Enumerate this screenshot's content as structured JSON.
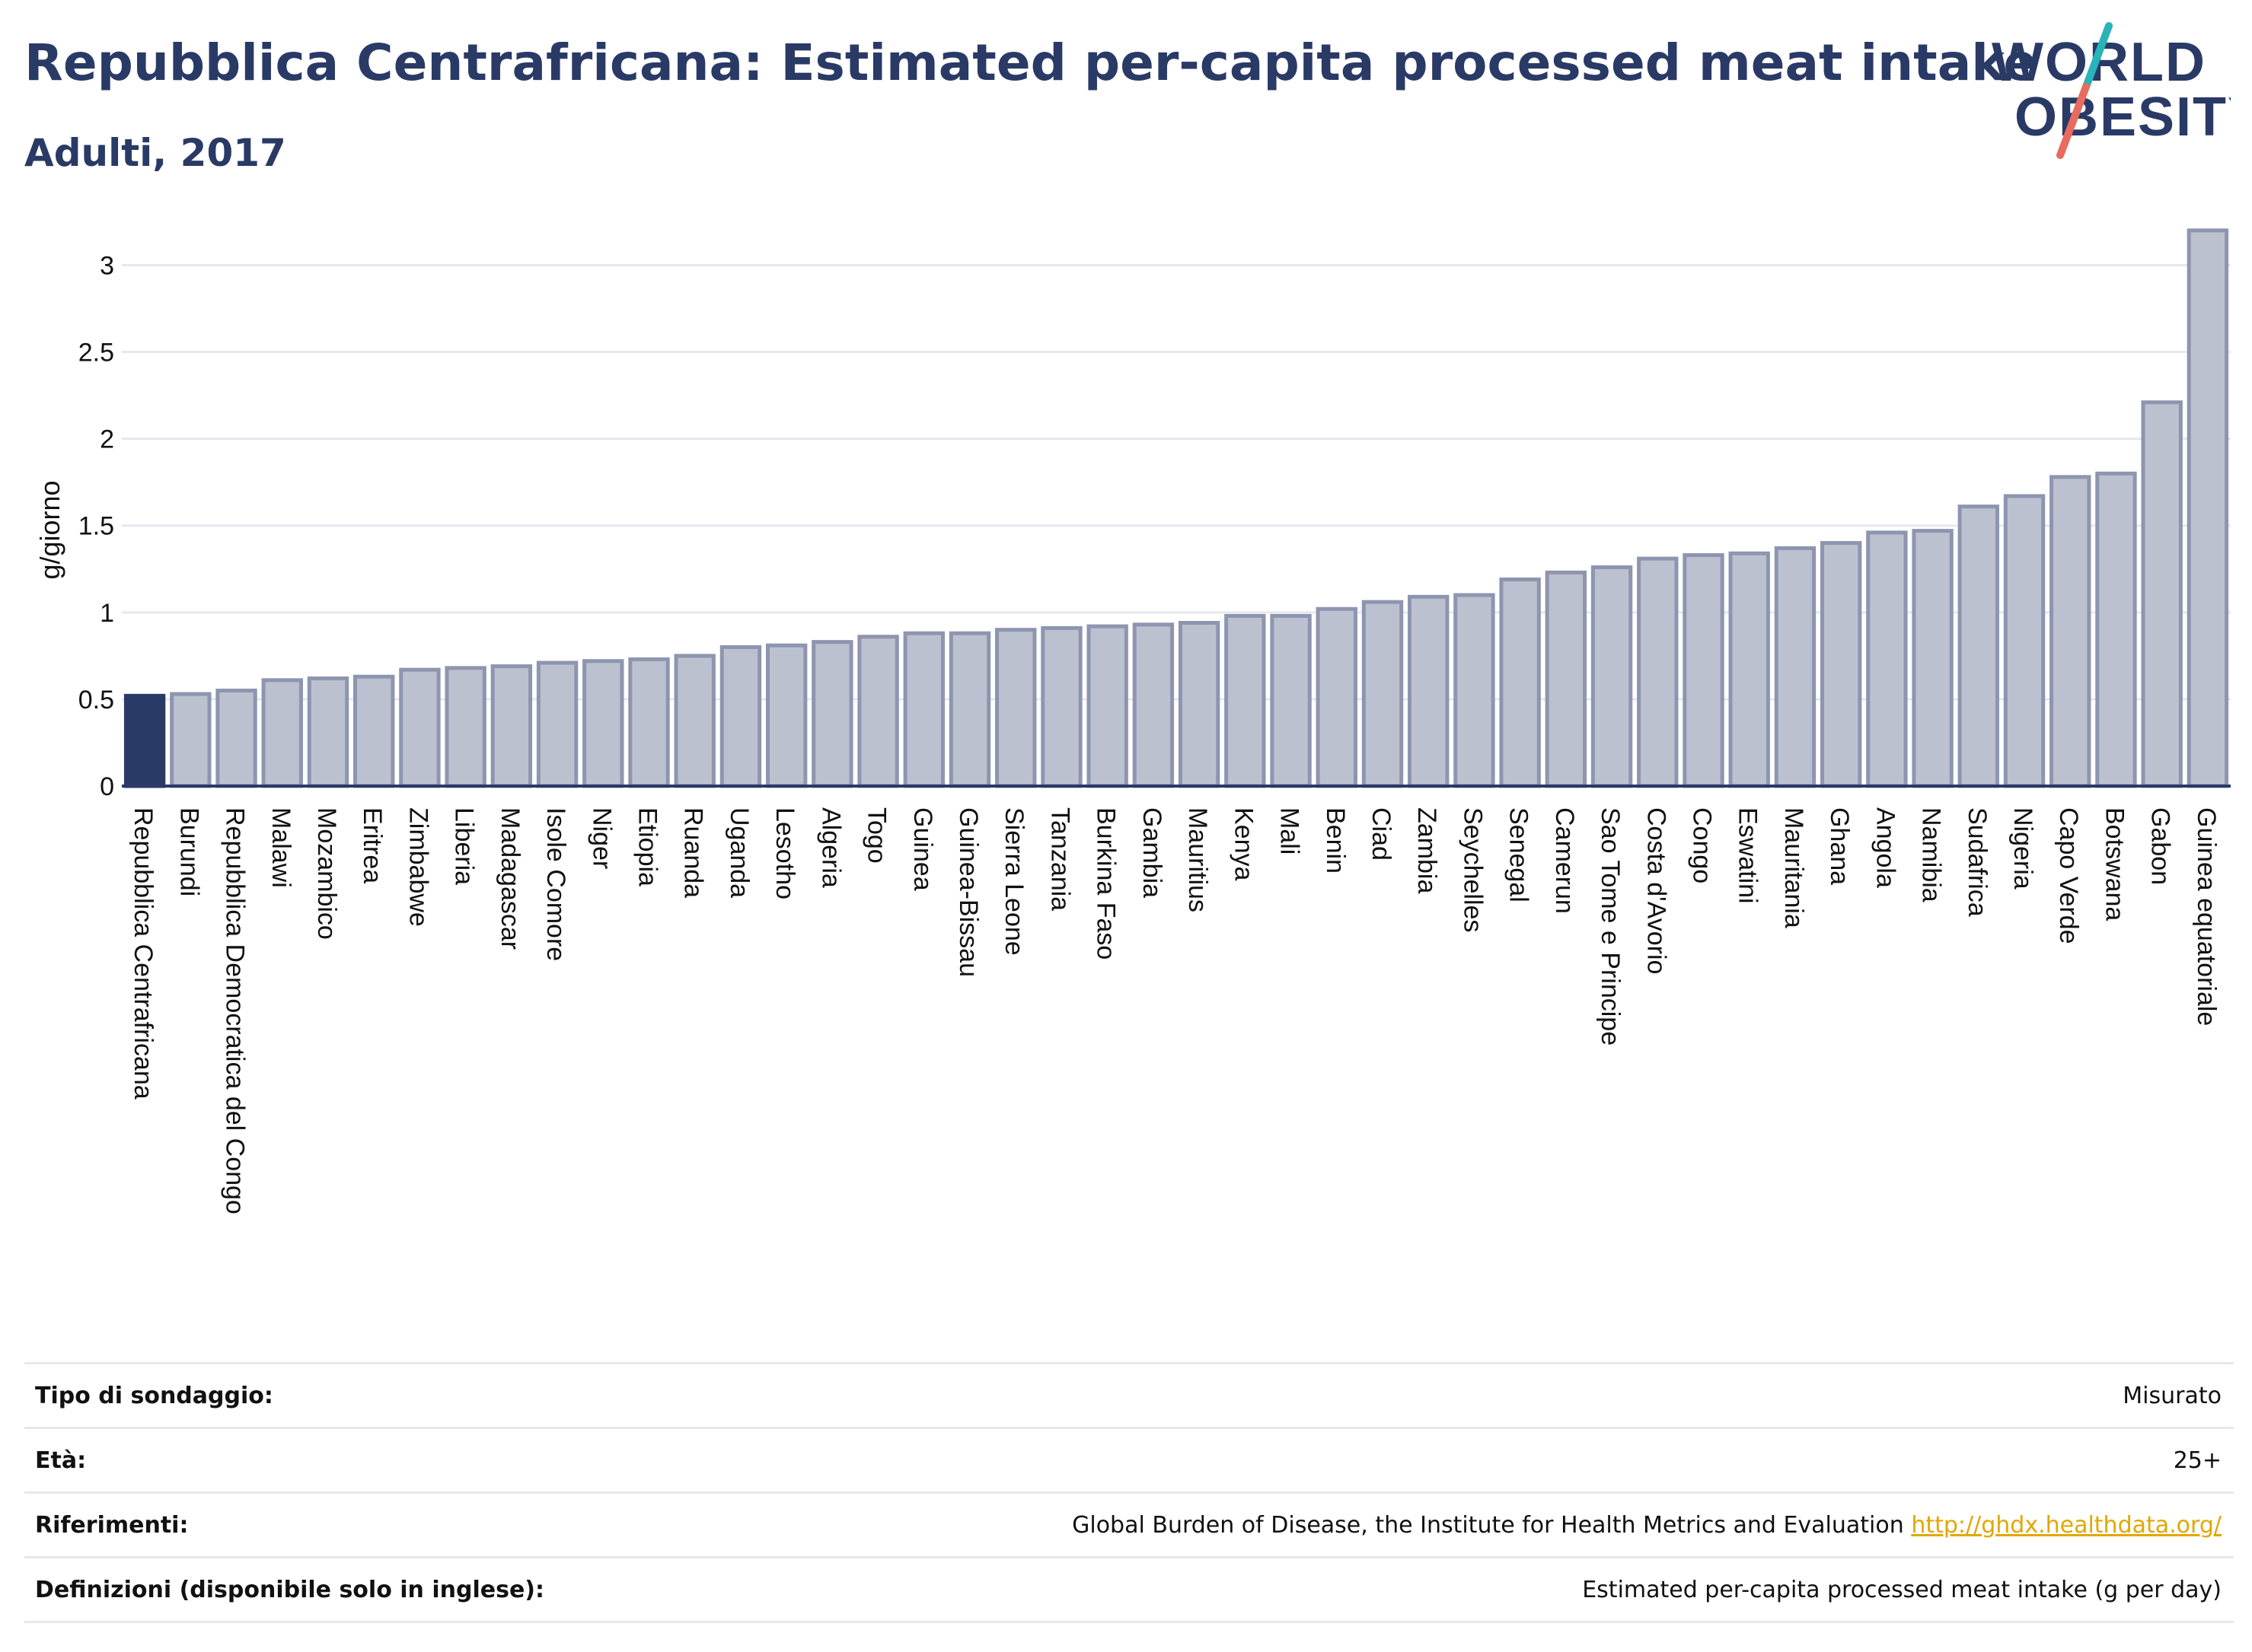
{
  "header": {
    "title": "Repubblica Centrafricana: Estimated per-capita processed meat intake",
    "subtitle": "Adulti, 2017"
  },
  "logo": {
    "line1": "WORLD",
    "line2": "OBESITY",
    "colors": {
      "text": "#2a3a66",
      "slash_top": "#2ab3b8",
      "slash_bottom": "#e86b5f"
    }
  },
  "colors": {
    "highlight_bar": "#2a3a66",
    "bar_fill": "#bcc1d0",
    "bar_stroke": "#8d95b0",
    "grid": "#e6e8ef",
    "text": "#111111",
    "title": "#2a3a66",
    "link": "#e0a800"
  },
  "chart_data": {
    "type": "bar",
    "title": "Repubblica Centrafricana: Estimated per-capita processed meat intake",
    "subtitle": "Adulti, 2017",
    "ylabel": "g/giorno",
    "xlabel": "",
    "ylim": [
      0,
      3.3
    ],
    "yticks": [
      "0",
      "0.5",
      "1",
      "1.5",
      "2",
      "2.5",
      "3"
    ],
    "grid": true,
    "highlight": "Repubblica Centrafricana",
    "categories": [
      "Repubblica Centrafricana",
      "Burundi",
      "Repubblica Democratica del Congo",
      "Malawi",
      "Mozambico",
      "Eritrea",
      "Zimbabwe",
      "Liberia",
      "Madagascar",
      "Isole Comore",
      "Niger",
      "Etiopia",
      "Ruanda",
      "Uganda",
      "Lesotho",
      "Algeria",
      "Togo",
      "Guinea",
      "Guinea-Bissau",
      "Sierra Leone",
      "Tanzania",
      "Burkina Faso",
      "Gambia",
      "Mauritius",
      "Kenya",
      "Mali",
      "Benin",
      "Ciad",
      "Zambia",
      "Seychelles",
      "Senegal",
      "Camerun",
      "Sao Tome e Principe",
      "Costa d'Avorio",
      "Congo",
      "Eswatini",
      "Mauritania",
      "Ghana",
      "Angola",
      "Namibia",
      "Sudafrica",
      "Nigeria",
      "Capo Verde",
      "Botswana",
      "Gabon",
      "Guinea equatoriale"
    ],
    "values": [
      0.52,
      0.53,
      0.55,
      0.61,
      0.62,
      0.63,
      0.67,
      0.68,
      0.69,
      0.71,
      0.72,
      0.73,
      0.75,
      0.8,
      0.81,
      0.83,
      0.86,
      0.88,
      0.88,
      0.9,
      0.91,
      0.92,
      0.93,
      0.94,
      0.98,
      0.98,
      1.02,
      1.06,
      1.09,
      1.1,
      1.19,
      1.23,
      1.26,
      1.31,
      1.33,
      1.34,
      1.37,
      1.4,
      1.46,
      1.47,
      1.61,
      1.67,
      1.78,
      1.8,
      2.21,
      3.2
    ]
  },
  "meta": {
    "rows": [
      {
        "label": "Tipo di sondaggio:",
        "value": "Misurato",
        "link": ""
      },
      {
        "label": "Età:",
        "value": "25+",
        "link": ""
      },
      {
        "label": "Riferimenti:",
        "value": "Global Burden of Disease, the Institute for Health Metrics and Evaluation",
        "link": "http://ghdx.healthdata.org/"
      },
      {
        "label": "Definizioni (disponibile solo in inglese):",
        "value": "Estimated per-capita processed meat intake (g per day)",
        "link": ""
      }
    ]
  }
}
